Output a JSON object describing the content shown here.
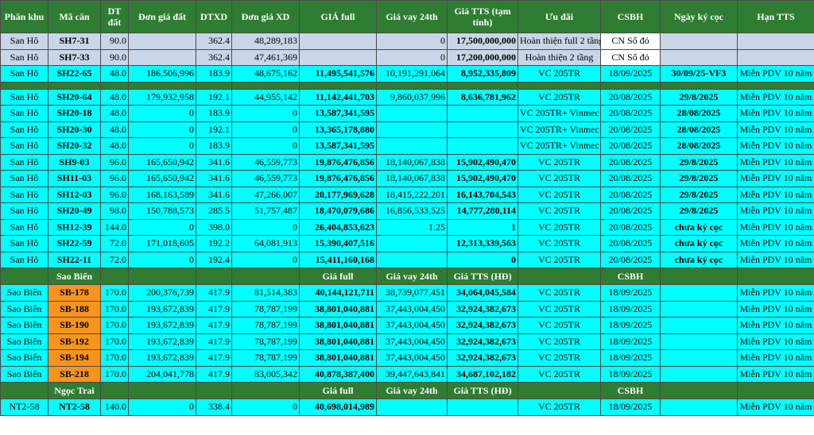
{
  "headers": [
    "Phân khu",
    "Mã căn",
    "DT đất",
    "Đơn giá đất",
    "DTXD",
    "Đơn giá XD",
    "GIÁ full",
    "Giá vay 24th",
    "Giá TTS (tạm tính)",
    "Ưu đãi",
    "CSBH",
    "Ngày ký cọc",
    "Hạn TTS"
  ],
  "gray_rows": [
    {
      "phan_khu": "San Hô",
      "ma_can": "SH7-31",
      "dt_dat": "90.0",
      "don_gia_dat": "",
      "dtxd": "362.4",
      "don_gia_xd": "48,289,183",
      "gia_full": "",
      "gia_vay": "0",
      "gia_tts": "17,500,000,000",
      "uu_dai": "Hoàn thiện full 2 tầng",
      "csbh": "CN Sổ đỏ",
      "ngay_ky_coc": "",
      "han_tts": ""
    },
    {
      "phan_khu": "San Hô",
      "ma_can": "SH7-33",
      "dt_dat": "90.0",
      "don_gia_dat": "",
      "dtxd": "362.4",
      "don_gia_xd": "47,461,369",
      "gia_full": "",
      "gia_vay": "0",
      "gia_tts": "17,200,000,000",
      "uu_dai": "Hoàn thiện 2 tầng",
      "csbh": "CN Sổ đỏ",
      "ngay_ky_coc": "",
      "han_tts": ""
    }
  ],
  "row_sh22_65": {
    "phan_khu": "San Hô",
    "ma_can": "SH22-65",
    "dt_dat": "48.0",
    "don_gia_dat": "186,506,996",
    "dtxd": "183.9",
    "don_gia_xd": "48,675,162",
    "gia_full": "11,495,541,576",
    "gia_vay": "10,191,291,064",
    "gia_tts": "8,952,335,809",
    "uu_dai": "VC 205TR",
    "csbh": "18/09/2025",
    "ngay_ky_coc": "30/09/25-VF3",
    "han_tts": "Miễn PDV 10 năm"
  },
  "san_ho_rows": [
    {
      "phan_khu": "San Hô",
      "ma_can": "SH20-64",
      "dt_dat": "48.0",
      "don_gia_dat": "179,932,958",
      "dtxd": "192.1",
      "don_gia_xd": "44,955,142",
      "gia_full": "11,142,441,703",
      "gia_vay": "9,860,037,996",
      "gia_tts": "8,636,781,962",
      "uu_dai": "VC 205TR",
      "csbh": "20/08/2025",
      "ngay_ky_coc": "29/8/2025",
      "han_tts": "Miễn PDV 10 năm"
    },
    {
      "phan_khu": "San Hô",
      "ma_can": "SH20-18",
      "dt_dat": "48.0",
      "don_gia_dat": "0",
      "dtxd": "183.9",
      "don_gia_xd": "0",
      "gia_full": "13,587,341,595",
      "gia_vay": "",
      "gia_tts": "",
      "uu_dai": "VC 205TR+ Vinmec",
      "csbh": "20/08/2025",
      "ngay_ky_coc": "28/08/2025",
      "han_tts": "Miễn PDV 10 năm"
    },
    {
      "phan_khu": "San Hô",
      "ma_can": "SH20-30",
      "dt_dat": "48.0",
      "don_gia_dat": "0",
      "dtxd": "192.1",
      "don_gia_xd": "0",
      "gia_full": "13,365,178,880",
      "gia_vay": "",
      "gia_tts": "",
      "uu_dai": "VC 205TR+ Vinmec",
      "csbh": "20/08/2025",
      "ngay_ky_coc": "28/08/2025",
      "han_tts": "Miễn PDV 10 năm"
    },
    {
      "phan_khu": "San Hô",
      "ma_can": "SH20-32",
      "dt_dat": "48.0",
      "don_gia_dat": "0",
      "dtxd": "183.9",
      "don_gia_xd": "0",
      "gia_full": "13,587,341,595",
      "gia_vay": "",
      "gia_tts": "",
      "uu_dai": "VC 205TR+ Vinmec",
      "csbh": "20/08/2025",
      "ngay_ky_coc": "28/08/2025",
      "han_tts": "Miễn PDV 10 năm"
    },
    {
      "phan_khu": "San Hô",
      "ma_can": "SH9-03",
      "dt_dat": "96.0",
      "don_gia_dat": "165,650,942",
      "dtxd": "341.6",
      "don_gia_xd": "46,559,773",
      "gia_full": "19,876,476,856",
      "gia_vay": "18,140,067,838",
      "gia_tts": "15,902,490,470",
      "uu_dai": "VC 205TR",
      "csbh": "20/08/2025",
      "ngay_ky_coc": "29/8/2025",
      "han_tts": "Miễn PDV 10 năm"
    },
    {
      "phan_khu": "San Hô",
      "ma_can": "SH11-03",
      "dt_dat": "96.0",
      "don_gia_dat": "165,650,942",
      "dtxd": "341.6",
      "don_gia_xd": "46,559,773",
      "gia_full": "19,876,476,856",
      "gia_vay": "18,140,067,838",
      "gia_tts": "15,902,490,470",
      "uu_dai": "VC 205TR",
      "csbh": "20/08/2025",
      "ngay_ky_coc": "29/8/2025",
      "han_tts": "Miễn PDV 10 năm"
    },
    {
      "phan_khu": "San Hô",
      "ma_can": "SH12-03",
      "dt_dat": "96.0",
      "don_gia_dat": "168,163,589",
      "dtxd": "341.6",
      "don_gia_xd": "47,266,007",
      "gia_full": "20,177,969,628",
      "gia_vay": "18,415,222,201",
      "gia_tts": "16,143,704,543",
      "uu_dai": "VC 205TR",
      "csbh": "20/08/2025",
      "ngay_ky_coc": "29/8/2025",
      "han_tts": "Miễn PDV 10 năm"
    },
    {
      "phan_khu": "San Hô",
      "ma_can": "SH20-49",
      "dt_dat": "98.0",
      "don_gia_dat": "150,788,573",
      "dtxd": "285.5",
      "don_gia_xd": "51,757,487",
      "gia_full": "18,470,079,686",
      "gia_vay": "16,856,533,525",
      "gia_tts": "14,777,280,114",
      "uu_dai": "VC 205TR",
      "csbh": "20/08/2025",
      "ngay_ky_coc": "29/8/2025",
      "han_tts": "Miễn PDV 10 năm"
    },
    {
      "phan_khu": "San Hô",
      "ma_can": "SH12-39",
      "dt_dat": "144.0",
      "don_gia_dat": "0",
      "dtxd": "398.0",
      "don_gia_xd": "0",
      "gia_full": "26,404,853,623",
      "gia_vay": "1.25",
      "gia_tts": "1",
      "uu_dai": "VC 205TR",
      "csbh": "20/08/2025",
      "ngay_ky_coc": "chưa ký cọc",
      "han_tts": "Miễn PDV 10 năm"
    },
    {
      "phan_khu": "San Hô",
      "ma_can": "SH22-59",
      "dt_dat": "72.0",
      "don_gia_dat": "171,018,605",
      "dtxd": "192.2",
      "don_gia_xd": "64,081,913",
      "gia_full": "15,390,407,516",
      "gia_vay": "",
      "gia_tts": "12,313,339,563",
      "uu_dai": "VC 205TR",
      "csbh": "20/08/2025",
      "ngay_ky_coc": "chưa ký cọc",
      "han_tts": "Miễn PDV 10 năm"
    },
    {
      "phan_khu": "San Hô",
      "ma_can": "SH22-11",
      "dt_dat": "72.0",
      "don_gia_dat": "0",
      "dtxd": "192.4",
      "don_gia_xd": "0",
      "gia_full": "15,411,160,168",
      "gia_vay": "",
      "gia_tts": "0",
      "uu_dai": "VC 205TR",
      "csbh": "20/08/2025",
      "ngay_ky_coc": "chưa ký cọc",
      "han_tts": "Miễn PDV 10 năm"
    }
  ],
  "sao_bien_header": {
    "title": "Sao Biển",
    "gia_full": "Giá full",
    "gia_vay": "Giá vay 24th",
    "gia_tts": "Giá TTS (HĐ)",
    "csbh": "CSBH"
  },
  "sao_bien_rows": [
    {
      "phan_khu": "Sao Biển",
      "ma_can": "SB-178",
      "dt_dat": "170.0",
      "don_gia_dat": "200,376,739",
      "dtxd": "417.9",
      "don_gia_xd": "81,514,383",
      "gia_full": "40,144,121,711",
      "gia_vay": "38,739,077,451",
      "gia_tts": "34,064,045,584",
      "uu_dai": "VC 205TR",
      "csbh": "18/09/2025",
      "ngay_ky_coc": "",
      "han_tts": "Miễn PDV 10 năm"
    },
    {
      "phan_khu": "Sao Biển",
      "ma_can": "SB-188",
      "dt_dat": "170.0",
      "don_gia_dat": "193,672,839",
      "dtxd": "417.9",
      "don_gia_xd": "78,787,199",
      "gia_full": "38,801,040,881",
      "gia_vay": "37,443,004,450",
      "gia_tts": "32,924,382,673",
      "uu_dai": "VC 205TR",
      "csbh": "18/09/2025",
      "ngay_ky_coc": "",
      "han_tts": "Miễn PDV 10 năm"
    },
    {
      "phan_khu": "Sao Biển",
      "ma_can": "SB-190",
      "dt_dat": "170.0",
      "don_gia_dat": "193,672,839",
      "dtxd": "417.9",
      "don_gia_xd": "78,787,199",
      "gia_full": "38,801,040,881",
      "gia_vay": "37,443,004,450",
      "gia_tts": "32,924,382,673",
      "uu_dai": "VC 205TR",
      "csbh": "18/09/2025",
      "ngay_ky_coc": "",
      "han_tts": "Miễn PDV 10 năm"
    },
    {
      "phan_khu": "Sao Biển",
      "ma_can": "SB-192",
      "dt_dat": "170.0",
      "don_gia_dat": "193,672,839",
      "dtxd": "417.9",
      "don_gia_xd": "78,787,199",
      "gia_full": "38,801,040,881",
      "gia_vay": "37,443,004,450",
      "gia_tts": "32,924,382,673",
      "uu_dai": "VC 205TR",
      "csbh": "18/09/2025",
      "ngay_ky_coc": "",
      "han_tts": "Miễn PDV 10 năm"
    },
    {
      "phan_khu": "Sao Biển",
      "ma_can": "SB-194",
      "dt_dat": "170.0",
      "don_gia_dat": "193,672,839",
      "dtxd": "417.9",
      "don_gia_xd": "78,787,199",
      "gia_full": "38,801,040,881",
      "gia_vay": "37,443,004,450",
      "gia_tts": "32,924,382,673",
      "uu_dai": "VC 205TR",
      "csbh": "18/09/2025",
      "ngay_ky_coc": "",
      "han_tts": "Miễn PDV 10 năm"
    },
    {
      "phan_khu": "Sao Biển",
      "ma_can": "SB-218",
      "dt_dat": "170.0",
      "don_gia_dat": "204,041,778",
      "dtxd": "417.9",
      "don_gia_xd": "83,005,342",
      "gia_full": "40,878,387,400",
      "gia_vay": "39,447,643,841",
      "gia_tts": "34,687,102,182",
      "uu_dai": "VC 205TR",
      "csbh": "18/09/2025",
      "ngay_ky_coc": "",
      "han_tts": "Miễn PDV 10 năm"
    }
  ],
  "ngoc_trai_header": {
    "title": "Ngọc Trai",
    "gia_full": "Giá full",
    "gia_vay": "Giá vay 24th",
    "gia_tts": "Giá TTS (HĐ)",
    "csbh": "CSBH"
  },
  "ngoc_trai_rows": [
    {
      "phan_khu": "NT2-58",
      "ma_can": "NT2-58",
      "dt_dat": "140.0",
      "don_gia_dat": "0",
      "dtxd": "338.4",
      "don_gia_xd": "0",
      "gia_full": "40,698,014,989",
      "gia_vay": "",
      "gia_tts": "",
      "uu_dai": "VC 205TR",
      "csbh": "18/09/2025",
      "ngay_ky_coc": "",
      "han_tts": "Miễn PDV 10 năm"
    }
  ]
}
